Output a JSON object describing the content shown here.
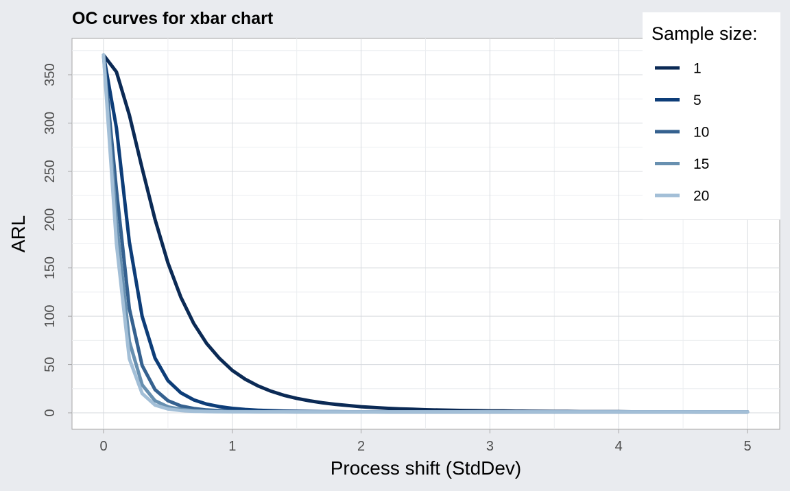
{
  "chart_data": {
    "type": "line",
    "title": "OC curves for xbar chart",
    "xlabel": "Process shift (StdDev)",
    "ylabel": "ARL",
    "xlim": [
      0,
      5
    ],
    "ylim": [
      0,
      370
    ],
    "x_ticks": [
      0,
      1,
      2,
      3,
      4,
      5
    ],
    "y_ticks": [
      0,
      50,
      100,
      150,
      200,
      250,
      300,
      350
    ],
    "grid": true,
    "legend": {
      "title": "Sample size:",
      "placement": "top-right"
    },
    "x": [
      0,
      0.1,
      0.2,
      0.3,
      0.4,
      0.5,
      0.6,
      0.7,
      0.8,
      0.9,
      1.0,
      1.1,
      1.2,
      1.3,
      1.4,
      1.5,
      1.6,
      1.7,
      1.8,
      1.9,
      2.0,
      2.1,
      2.2,
      2.3,
      2.4,
      2.5,
      2.6,
      2.7,
      2.8,
      2.9,
      3.0,
      3.1,
      3.2,
      3.3,
      3.4,
      3.5,
      3.6,
      3.7,
      3.8,
      3.9,
      4.0,
      4.1,
      4.2,
      4.3,
      4.4,
      4.5,
      4.6,
      4.7,
      4.8,
      4.9,
      5.0
    ],
    "series": [
      {
        "name": "1",
        "color": "#0b2a55",
        "values": [
          370.4,
          352.9,
          308.4,
          253.1,
          200.1,
          155.2,
          119.7,
          92.5,
          71.9,
          56.4,
          43.9,
          34.8,
          27.8,
          22.4,
          18.2,
          15.0,
          12.4,
          10.4,
          8.8,
          7.5,
          6.3,
          5.5,
          4.7,
          4.1,
          3.7,
          3.2,
          2.9,
          2.6,
          2.4,
          2.2,
          2.0,
          1.9,
          1.7,
          1.6,
          1.5,
          1.4,
          1.4,
          1.3,
          1.3,
          1.2,
          1.2,
          1.1,
          1.1,
          1.1,
          1.1,
          1.1,
          1.0,
          1.0,
          1.0,
          1.0,
          1.0
        ]
      },
      {
        "name": "5",
        "color": "#0d3d78",
        "values": [
          370.4,
          295.0,
          177.0,
          99.8,
          56.6,
          33.4,
          20.7,
          13.4,
          9.1,
          6.4,
          4.6,
          3.5,
          2.7,
          2.2,
          1.8,
          1.6,
          1.4,
          1.3,
          1.2,
          1.1,
          1.1,
          1.1,
          1.0,
          1.0,
          1.0,
          1.0,
          1.0,
          1.0,
          1.0,
          1.0,
          1.0,
          1.0,
          1.0,
          1.0,
          1.0,
          1.0,
          1.0,
          1.0,
          1.0,
          1.0,
          1.0,
          1.0,
          1.0,
          1.0,
          1.0,
          1.0,
          1.0,
          1.0,
          1.0,
          1.0,
          1.0
        ]
      },
      {
        "name": "10",
        "color": "#35618f",
        "values": [
          370.4,
          231.0,
          108.0,
          49.0,
          24.0,
          12.6,
          7.2,
          4.5,
          3.0,
          2.2,
          1.7,
          1.4,
          1.2,
          1.1,
          1.1,
          1.0,
          1.0,
          1.0,
          1.0,
          1.0,
          1.0,
          1.0,
          1.0,
          1.0,
          1.0,
          1.0,
          1.0,
          1.0,
          1.0,
          1.0,
          1.0,
          1.0,
          1.0,
          1.0,
          1.0,
          1.0,
          1.0,
          1.0,
          1.0,
          1.0,
          1.0,
          1.0,
          1.0,
          1.0,
          1.0,
          1.0,
          1.0,
          1.0,
          1.0,
          1.0,
          1.0
        ]
      },
      {
        "name": "15",
        "color": "#6890b0",
        "values": [
          370.4,
          198.0,
          74.0,
          29.0,
          12.5,
          6.2,
          3.6,
          2.3,
          1.6,
          1.3,
          1.1,
          1.1,
          1.0,
          1.0,
          1.0,
          1.0,
          1.0,
          1.0,
          1.0,
          1.0,
          1.0,
          1.0,
          1.0,
          1.0,
          1.0,
          1.0,
          1.0,
          1.0,
          1.0,
          1.0,
          1.0,
          1.0,
          1.0,
          1.0,
          1.0,
          1.0,
          1.0,
          1.0,
          1.0,
          1.0,
          1.0,
          1.0,
          1.0,
          1.0,
          1.0,
          1.0,
          1.0,
          1.0,
          1.0,
          1.0,
          1.0
        ]
      },
      {
        "name": "20",
        "color": "#a3bfd7",
        "values": [
          370.4,
          175.0,
          56.0,
          20.0,
          8.0,
          4.0,
          2.4,
          1.6,
          1.3,
          1.1,
          1.0,
          1.0,
          1.0,
          1.0,
          1.0,
          1.0,
          1.0,
          1.0,
          1.0,
          1.0,
          1.0,
          1.0,
          1.0,
          1.0,
          1.0,
          1.0,
          1.0,
          1.0,
          1.0,
          1.0,
          1.0,
          1.0,
          1.0,
          1.0,
          1.0,
          1.0,
          1.0,
          1.0,
          1.0,
          1.0,
          1.0,
          1.0,
          1.0,
          1.0,
          1.0,
          1.0,
          1.0,
          1.0,
          1.0,
          1.0,
          1.0
        ]
      }
    ]
  },
  "colors": {
    "page_background": "#e9ebef",
    "panel_background": "#ffffff",
    "grid_major": "#d6d9de",
    "grid_minor": "#eceef1",
    "axis_text": "#4d4d4d"
  }
}
